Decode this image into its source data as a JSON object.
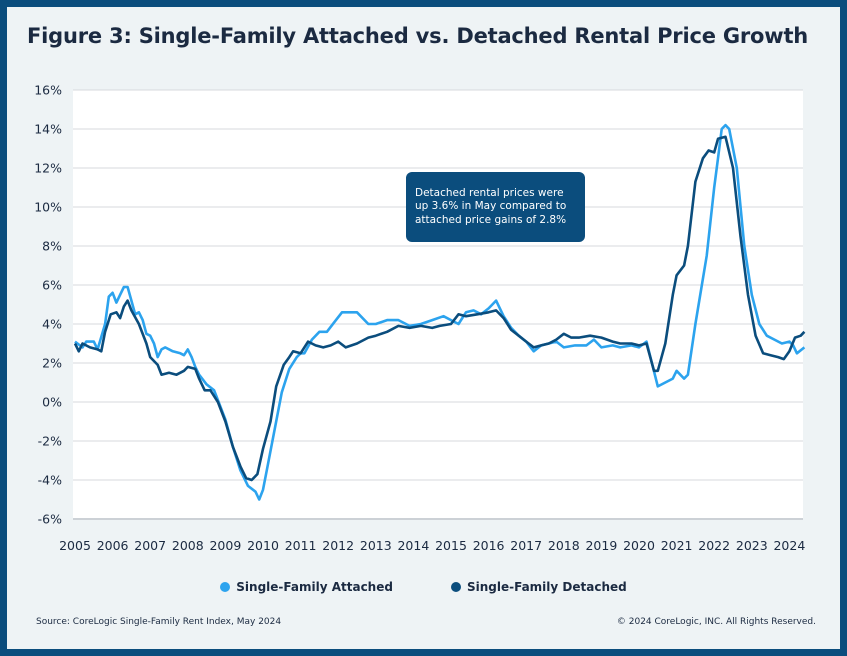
{
  "title": "Figure 3: Single-Family Attached vs. Detached Rental Price Growth",
  "annotation": "Detached rental prices were up 3.6% in May compared to attached price gains of 2.8%",
  "source": "Source: CoreLogic Single-Family Rent Index, May 2024",
  "copyright": "© 2024 CoreLogic, INC. All Rights Reserved.",
  "chart_data": {
    "type": "line",
    "title": "Figure 3: Single-Family Attached vs. Detached Rental Price Growth",
    "xlabel": "",
    "ylabel": "",
    "xlim": [
      2005,
      2024.4
    ],
    "ylim": [
      -6,
      16
    ],
    "x_ticks": [
      "2005",
      "2006",
      "2007",
      "2008",
      "2009",
      "2010",
      "2011",
      "2012",
      "2013",
      "2014",
      "2015",
      "2016",
      "2017",
      "2018",
      "2019",
      "2020",
      "2021",
      "2022",
      "2023",
      "2024"
    ],
    "y_ticks": [
      "16%",
      "14%",
      "12%",
      "10%",
      "8%",
      "6%",
      "4%",
      "2%",
      "0%",
      "-2%",
      "-4%",
      "-6%"
    ],
    "grid": "horizontal",
    "legend": "bottom",
    "series": [
      {
        "name": "Single-Family Attached",
        "color": "#2ca3ee",
        "x": [
          2005.0,
          2005.2,
          2005.3,
          2005.5,
          2005.6,
          2005.8,
          2005.9,
          2006.0,
          2006.1,
          2006.2,
          2006.3,
          2006.4,
          2006.5,
          2006.6,
          2006.7,
          2006.8,
          2006.9,
          2007.0,
          2007.1,
          2007.2,
          2007.3,
          2007.4,
          2007.6,
          2007.8,
          2007.9,
          2008.0,
          2008.1,
          2008.2,
          2008.3,
          2008.5,
          2008.7,
          2008.8,
          2009.0,
          2009.2,
          2009.4,
          2009.6,
          2009.8,
          2009.9,
          2010.0,
          2010.1,
          2010.3,
          2010.5,
          2010.7,
          2010.9,
          2011.0,
          2011.1,
          2011.3,
          2011.5,
          2011.7,
          2011.9,
          2012.1,
          2012.3,
          2012.5,
          2012.8,
          2013.0,
          2013.3,
          2013.6,
          2013.9,
          2014.2,
          2014.5,
          2014.8,
          2015.0,
          2015.2,
          2015.4,
          2015.6,
          2015.8,
          2016.0,
          2016.2,
          2016.4,
          2016.6,
          2016.8,
          2017.0,
          2017.2,
          2017.4,
          2017.6,
          2017.8,
          2018.0,
          2018.3,
          2018.6,
          2018.8,
          2019.0,
          2019.3,
          2019.5,
          2019.8,
          2020.0,
          2020.2,
          2020.5,
          2020.7,
          2020.9,
          2021.0,
          2021.2,
          2021.3,
          2021.5,
          2021.8,
          2022.0,
          2022.1,
          2022.2,
          2022.3,
          2022.4,
          2022.6,
          2022.8,
          2023.0,
          2023.2,
          2023.4,
          2023.6,
          2023.8,
          2024.0,
          2024.1,
          2024.2,
          2024.4
        ],
        "values": [
          3.1,
          2.8,
          3.1,
          3.1,
          2.7,
          4.0,
          5.4,
          5.6,
          5.1,
          5.5,
          5.9,
          5.9,
          5.2,
          4.5,
          4.6,
          4.2,
          3.5,
          3.4,
          3.0,
          2.3,
          2.7,
          2.8,
          2.6,
          2.5,
          2.4,
          2.7,
          2.3,
          1.8,
          1.4,
          0.9,
          0.6,
          0.1,
          -0.9,
          -2.3,
          -3.5,
          -4.3,
          -4.6,
          -5.0,
          -4.5,
          -3.5,
          -1.5,
          0.5,
          1.7,
          2.3,
          2.5,
          2.5,
          3.2,
          3.6,
          3.6,
          4.1,
          4.6,
          4.6,
          4.6,
          4.0,
          4.0,
          4.2,
          4.2,
          3.9,
          4.0,
          4.2,
          4.4,
          4.2,
          4.0,
          4.6,
          4.7,
          4.5,
          4.8,
          5.2,
          4.4,
          3.8,
          3.4,
          3.1,
          2.6,
          2.9,
          3.0,
          3.1,
          2.8,
          2.9,
          2.9,
          3.2,
          2.8,
          2.9,
          2.8,
          2.9,
          2.8,
          3.1,
          0.8,
          1.0,
          1.2,
          1.6,
          1.2,
          1.4,
          4.0,
          7.5,
          11.0,
          12.5,
          14.0,
          14.2,
          14.0,
          12.0,
          8.0,
          5.5,
          4.0,
          3.4,
          3.2,
          3.0,
          3.1,
          2.9,
          2.5,
          2.8
        ]
      },
      {
        "name": "Single-Family Detached",
        "color": "#0b4d7d",
        "x": [
          2005.0,
          2005.1,
          2005.2,
          2005.4,
          2005.6,
          2005.7,
          2005.8,
          2005.95,
          2006.1,
          2006.2,
          2006.3,
          2006.4,
          2006.5,
          2006.7,
          2006.9,
          2007.0,
          2007.2,
          2007.3,
          2007.5,
          2007.7,
          2007.9,
          2008.0,
          2008.2,
          2008.3,
          2008.45,
          2008.6,
          2008.8,
          2009.0,
          2009.2,
          2009.4,
          2009.55,
          2009.7,
          2009.85,
          2010.0,
          2010.2,
          2010.35,
          2010.55,
          2010.7,
          2010.8,
          2011.0,
          2011.2,
          2011.4,
          2011.6,
          2011.8,
          2012.0,
          2012.2,
          2012.5,
          2012.8,
          2013.0,
          2013.3,
          2013.6,
          2013.9,
          2014.2,
          2014.5,
          2014.7,
          2015.0,
          2015.2,
          2015.4,
          2015.7,
          2016.0,
          2016.2,
          2016.4,
          2016.6,
          2016.8,
          2017.0,
          2017.2,
          2017.4,
          2017.6,
          2017.8,
          2018.0,
          2018.2,
          2018.4,
          2018.7,
          2019.0,
          2019.3,
          2019.5,
          2019.8,
          2020.0,
          2020.2,
          2020.4,
          2020.5,
          2020.7,
          2020.9,
          2021.0,
          2021.2,
          2021.3,
          2021.5,
          2021.7,
          2021.85,
          2022.0,
          2022.1,
          2022.3,
          2022.5,
          2022.7,
          2022.9,
          2023.1,
          2023.3,
          2023.5,
          2023.7,
          2023.85,
          2024.0,
          2024.15,
          2024.3,
          2024.4
        ],
        "values": [
          3.0,
          2.6,
          3.0,
          2.8,
          2.7,
          2.6,
          3.6,
          4.5,
          4.6,
          4.3,
          4.9,
          5.2,
          4.7,
          4.0,
          3.0,
          2.3,
          1.9,
          1.4,
          1.5,
          1.4,
          1.6,
          1.8,
          1.7,
          1.2,
          0.6,
          0.6,
          0.0,
          -1.0,
          -2.3,
          -3.3,
          -3.9,
          -4.0,
          -3.7,
          -2.4,
          -1.0,
          0.8,
          1.9,
          2.3,
          2.6,
          2.5,
          3.1,
          2.9,
          2.8,
          2.9,
          3.1,
          2.8,
          3.0,
          3.3,
          3.4,
          3.6,
          3.9,
          3.8,
          3.9,
          3.8,
          3.9,
          4.0,
          4.5,
          4.4,
          4.5,
          4.6,
          4.7,
          4.3,
          3.7,
          3.4,
          3.1,
          2.8,
          2.9,
          3.0,
          3.2,
          3.5,
          3.3,
          3.3,
          3.4,
          3.3,
          3.1,
          3.0,
          3.0,
          2.9,
          3.0,
          1.6,
          1.6,
          3.0,
          5.5,
          6.5,
          7.0,
          8.0,
          11.3,
          12.5,
          12.9,
          12.8,
          13.5,
          13.6,
          12.0,
          8.5,
          5.5,
          3.4,
          2.5,
          2.4,
          2.3,
          2.2,
          2.6,
          3.3,
          3.4,
          3.6
        ]
      }
    ]
  }
}
